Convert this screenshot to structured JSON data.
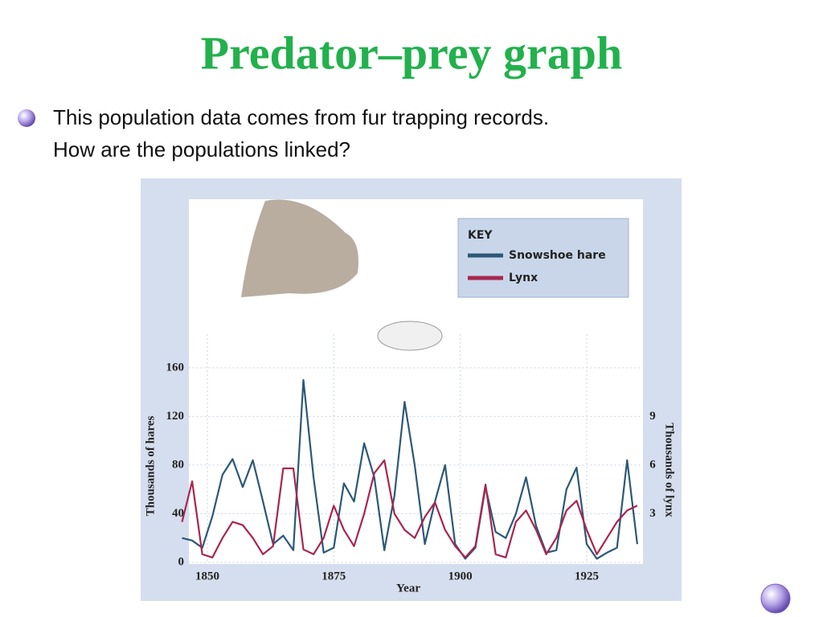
{
  "slide": {
    "title": "Predator–prey graph",
    "bullet_lines": [
      "This population data comes from fur trapping records.",
      "How are the populations linked?"
    ]
  },
  "chart_data": {
    "type": "line",
    "legend_title": "KEY",
    "xlabel": "Year",
    "ylabel": "Thousands of hares",
    "y2label": "Thousands of lynx",
    "x": [
      1845,
      1847,
      1849,
      1851,
      1853,
      1855,
      1857,
      1859,
      1861,
      1863,
      1865,
      1867,
      1869,
      1871,
      1873,
      1875,
      1877,
      1879,
      1881,
      1883,
      1885,
      1887,
      1889,
      1891,
      1893,
      1895,
      1897,
      1899,
      1901,
      1903,
      1905,
      1907,
      1909,
      1911,
      1913,
      1915,
      1917,
      1919,
      1921,
      1923,
      1925,
      1927,
      1929,
      1931,
      1933,
      1935
    ],
    "series": [
      {
        "name": "Snowshoe hare",
        "color": "#2b5877",
        "values": [
          20,
          18,
          12,
          38,
          72,
          85,
          62,
          84,
          50,
          15,
          22,
          10,
          150,
          70,
          8,
          12,
          65,
          50,
          98,
          70,
          10,
          55,
          132,
          80,
          15,
          50,
          80,
          15,
          3,
          12,
          62,
          25,
          20,
          40,
          70,
          30,
          8,
          10,
          60,
          78,
          15,
          3,
          8,
          12,
          84,
          15
        ]
      },
      {
        "name": "Lynx",
        "color": "#a8264e",
        "axis": "y2",
        "values": [
          2.5,
          5,
          0.5,
          0.3,
          1.5,
          2.5,
          2.3,
          1.5,
          0.5,
          1,
          5.8,
          5.8,
          0.8,
          0.5,
          1.5,
          3.5,
          2,
          1,
          3,
          5.5,
          6.3,
          3,
          2,
          1.5,
          2.8,
          3.7,
          2,
          1,
          0.3,
          1,
          4.8,
          0.5,
          0.3,
          2.5,
          3.2,
          2,
          0.5,
          1.5,
          3.2,
          3.8,
          2,
          0.5,
          1.5,
          2.5,
          3.2,
          3.5
        ]
      }
    ],
    "xlim": [
      1845,
      1937
    ],
    "xticks": [
      1850,
      1875,
      1900,
      1925
    ],
    "ylim": [
      0,
      300
    ],
    "yticks": [
      0,
      40,
      80,
      120,
      160
    ],
    "y2lim": [
      0,
      22.5
    ],
    "y2ticks": [
      3,
      6,
      9
    ],
    "grid": true
  }
}
